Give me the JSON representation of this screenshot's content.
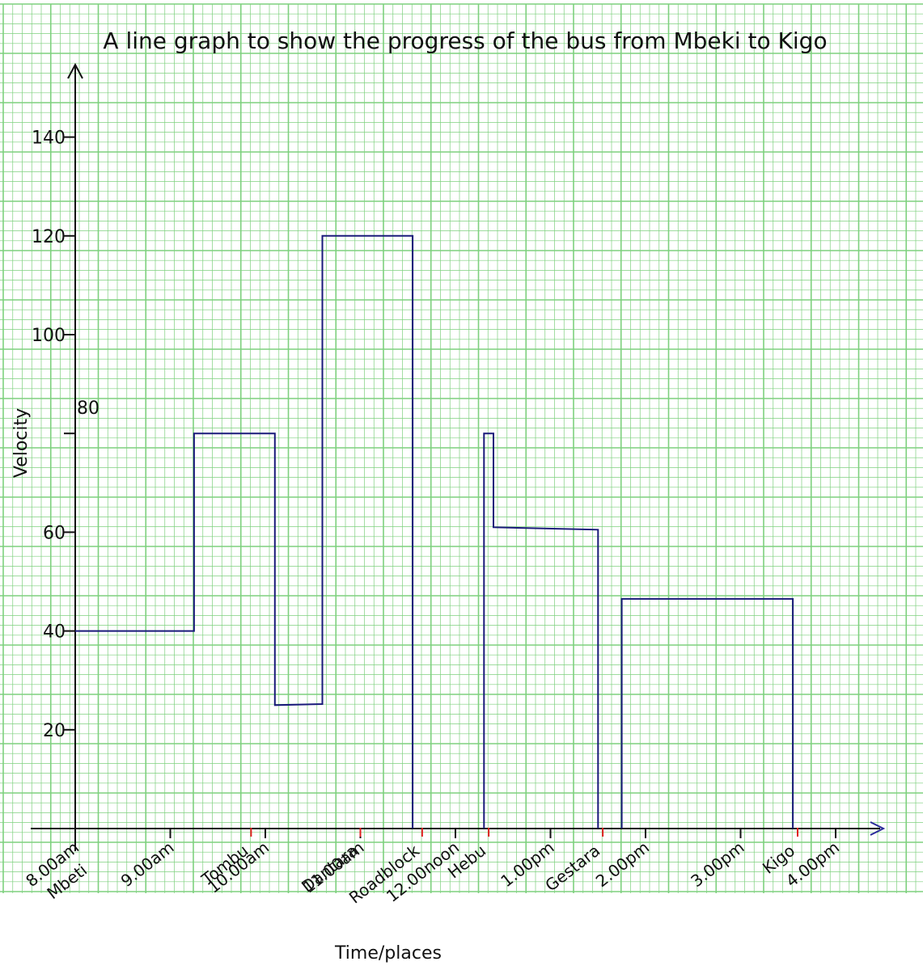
{
  "chart_data": {
    "type": "line",
    "title": "A line graph to show the progress of the bus from Mbeki to Kigo",
    "xlabel": "Time/places",
    "ylabel": "Velocity",
    "x_unit": "hours after 8.00am",
    "xlim": [
      0,
      8.3
    ],
    "ylim": [
      0,
      150
    ],
    "yticks": [
      {
        "value": 20,
        "label": "20"
      },
      {
        "value": 40,
        "label": "40"
      },
      {
        "value": 60,
        "label": "60"
      },
      {
        "value": 80,
        "label": "80"
      },
      {
        "value": 100,
        "label": "100"
      },
      {
        "value": 120,
        "label": "120"
      },
      {
        "value": 140,
        "label": "140"
      }
    ],
    "time_ticks": [
      {
        "x": 0,
        "label": "8.00am"
      },
      {
        "x": 1,
        "label": "9.00am"
      },
      {
        "x": 2,
        "label": "10.00am"
      },
      {
        "x": 3,
        "label": "11.00am"
      },
      {
        "x": 4,
        "label": "12.00noon"
      },
      {
        "x": 5,
        "label": "1.00pm"
      },
      {
        "x": 6,
        "label": "2.00pm"
      },
      {
        "x": 7,
        "label": "3.00pm"
      },
      {
        "x": 8,
        "label": "4.00pm"
      }
    ],
    "place_labels": [
      {
        "x": 0,
        "label": "Mbeti",
        "color": "#111111"
      },
      {
        "x": 1.85,
        "label": "Tombu",
        "color": "#111111"
      },
      {
        "x": 3.0,
        "label": "Dantara",
        "color": "#111111"
      },
      {
        "x": 3.65,
        "label": "Roadblock",
        "color": "#e02020"
      },
      {
        "x": 4.35,
        "label": "Hebu",
        "color": "#111111"
      },
      {
        "x": 5.55,
        "label": "Gestara",
        "color": "#e02020"
      },
      {
        "x": 7.6,
        "label": "Kigo",
        "color": "#111111"
      }
    ],
    "series": [
      {
        "color": "#1a1a7a",
        "points": [
          [
            0,
            40
          ],
          [
            1.25,
            40
          ],
          [
            1.25,
            80
          ],
          [
            2.1,
            80
          ],
          [
            2.1,
            25
          ],
          [
            2.6,
            25.2
          ],
          [
            2.6,
            120
          ],
          [
            3.55,
            120
          ],
          [
            3.55,
            0
          ]
        ]
      },
      {
        "color": "#1a1a7a",
        "points": [
          [
            4.3,
            0
          ],
          [
            4.3,
            80
          ],
          [
            4.4,
            80
          ],
          [
            4.4,
            61
          ],
          [
            5.5,
            60.5
          ],
          [
            5.5,
            0
          ]
        ]
      },
      {
        "color": "#1a1a7a",
        "points": [
          [
            5.75,
            0
          ],
          [
            5.75,
            46.5
          ],
          [
            7.55,
            46.5
          ],
          [
            7.55,
            0
          ]
        ]
      }
    ],
    "grid": true,
    "grid_color": "#7ed07e"
  }
}
